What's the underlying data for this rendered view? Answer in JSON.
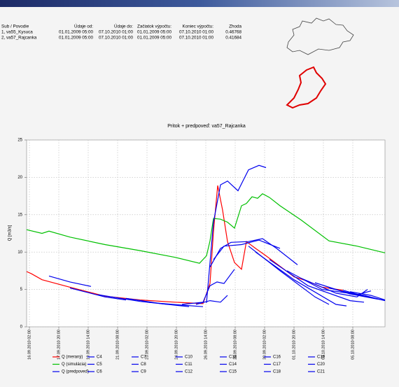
{
  "table": {
    "columns": [
      "Sub / Povodie",
      "Údaje od:",
      "Údaje do:",
      "Začiatok výpočtu:",
      "Koniec výpočtu:",
      "Zhoda"
    ],
    "rows": [
      [
        "1, va55_Kysuca",
        "01.01.2009 05:00",
        "07.10.2010 01:00",
        "01.01.2009 05:00",
        "07.10.2010 01:00",
        "0.46768"
      ],
      [
        "2, va57_Rajcanka",
        "01.01.2009 05:00",
        "07.10.2010 01:00",
        "01.01.2009 05:00",
        "07.10.2010 01:00",
        "0.41684"
      ]
    ]
  },
  "chart_data": {
    "type": "line",
    "title": "Pritok + predpoveď: va57_Rajcanka",
    "y_label": "Q [m3/s]",
    "xlim": [
      "15.09.2010 22:00",
      "07.10.2010 06:00"
    ],
    "xticks": [
      "16.09.2010 02:00",
      "17.09.2010 20:00",
      "19.09.2010 14:00",
      "21.09.2010 08:00",
      "23.09.2010 02:00",
      "24.09.2010 20:00",
      "26.09.2010 14:00",
      "28.09.2010 08:00",
      "30.09.2010 02:00",
      "01.10.2010 20:00",
      "03.10.2010 14:00",
      "05.10.2010 08:00"
    ],
    "ylim": [
      0,
      25
    ],
    "yticks": [
      0,
      5,
      10,
      15,
      20,
      25
    ],
    "grid": true,
    "series": [
      {
        "name": "Q (meraný)",
        "color": "#ff0000",
        "x": [
          "15.09.2010 22:00",
          "16.09.2010 05:00",
          "16.09.2010 20:00",
          "18.09.2010 12:00",
          "20.09.2010 14:00",
          "22.09.2010 16:00",
          "24.09.2010 18:00",
          "26.09.2010 10:00",
          "26.09.2010 20:00",
          "27.09.2010 01:00",
          "27.09.2010 07:00",
          "27.09.2010 14:00",
          "27.09.2010 21:00",
          "28.09.2010 07:00",
          "28.09.2010 17:00",
          "29.09.2010 00:00",
          "29.09.2010 13:00",
          "30.09.2010 04:00",
          "01.10.2010 00:00",
          "01.10.2010 20:00",
          "02.10.2010 16:00",
          "03.10.2010 12:00",
          "04.10.2010 18:00"
        ],
        "values": [
          7.4,
          7.1,
          6.3,
          5.3,
          4.1,
          3.6,
          3.3,
          3.1,
          5.8,
          12.8,
          18.9,
          15.6,
          11.4,
          8.6,
          7.7,
          11.4,
          10.5,
          9.5,
          8.1,
          6.7,
          6.1,
          5.3,
          4.9
        ]
      },
      {
        "name": "Q (simulácia)",
        "color": "#00c000",
        "x": [
          "15.09.2010 22:00",
          "16.09.2010 20:00",
          "17.09.2010 06:00",
          "18.09.2010 12:00",
          "20.09.2010 14:00",
          "22.09.2010 16:00",
          "24.09.2010 18:00",
          "26.09.2010 05:00",
          "26.09.2010 15:00",
          "26.09.2010 20:00",
          "27.09.2010 01:00",
          "27.09.2010 11:00",
          "27.09.2010 21:00",
          "28.09.2010 07:00",
          "28.09.2010 17:00",
          "29.09.2010 00:00",
          "29.09.2010 08:00",
          "29.09.2010 16:00",
          "29.09.2010 23:00",
          "30.09.2010 09:00",
          "01.10.2010 00:00",
          "02.10.2010 06:00",
          "03.10.2010 22:00",
          "05.10.2010 14:00",
          "07.10.2010 06:00"
        ],
        "values": [
          13.0,
          12.5,
          12.8,
          12.0,
          11.0,
          10.2,
          9.3,
          8.5,
          9.5,
          11.5,
          14.5,
          14.4,
          14.0,
          13.2,
          16.2,
          16.5,
          17.4,
          17.2,
          17.8,
          17.3,
          16.2,
          14.3,
          11.5,
          10.8,
          9.9
        ]
      },
      {
        "name": "Q (predpoveď)",
        "color": "#0000ee",
        "x": [
          "26.09.2010 15:00",
          "27.09.2010 01:00",
          "27.09.2010 11:00",
          "27.09.2010 21:00",
          "28.09.2010 12:00",
          "29.09.2010 03:00",
          "29.09.2010 18:00",
          "30.09.2010 04:00"
        ],
        "values": [
          3.2,
          14.0,
          19.0,
          19.5,
          18.2,
          21.0,
          21.6,
          21.3
        ]
      },
      {
        "name": "C4",
        "color": "#0000ee",
        "x": [
          "17.09.2010 06:00",
          "18.09.2010 12:00",
          "19.09.2010 18:00"
        ],
        "values": [
          6.8,
          6.0,
          5.4
        ]
      },
      {
        "name": "C5",
        "color": "#0000ee",
        "x": [
          "18.09.2010 12:00",
          "20.09.2010 14:00",
          "21.09.2010 20:00"
        ],
        "values": [
          5.2,
          4.0,
          3.6
        ]
      },
      {
        "name": "C6",
        "color": "#0000ee",
        "x": [
          "20.09.2010 04:00",
          "22.09.2010 16:00",
          "24.09.2010 08:00"
        ],
        "values": [
          4.3,
          3.4,
          3.0
        ]
      },
      {
        "name": "C7",
        "color": "#0000ee",
        "x": [
          "21.09.2010 20:00",
          "23.09.2010 22:00",
          "25.09.2010 14:00"
        ],
        "values": [
          3.8,
          3.1,
          2.7
        ]
      },
      {
        "name": "C8",
        "color": "#0000ee",
        "x": [
          "23.09.2010 02:00",
          "25.09.2010 04:00",
          "26.09.2010 10:00"
        ],
        "values": [
          3.3,
          2.9,
          2.7
        ]
      },
      {
        "name": "C9",
        "color": "#0000ee",
        "x": [
          "25.09.2010 04:00",
          "26.09.2010 10:00",
          "26.09.2010 20:00",
          "27.09.2010 06:00",
          "27.09.2010 16:00",
          "28.09.2010 07:00"
        ],
        "values": [
          3.0,
          3.3,
          5.5,
          6.0,
          5.8,
          7.7
        ]
      },
      {
        "name": "C10",
        "color": "#0000ee",
        "x": [
          "26.09.2010 00:00",
          "26.09.2010 20:00",
          "27.09.2010 11:00",
          "27.09.2010 21:00"
        ],
        "values": [
          3.0,
          3.5,
          3.3,
          4.2
        ]
      },
      {
        "name": "C11",
        "color": "#0000ee",
        "x": [
          "26.09.2010 20:00",
          "27.09.2010 11:00",
          "28.09.2010 02:00",
          "29.09.2010 03:00",
          "29.09.2010 23:00",
          "30.09.2010 19:00",
          "02.10.2010 01:00"
        ],
        "values": [
          8.0,
          10.5,
          11.3,
          11.4,
          11.8,
          10.5,
          8.3
        ]
      },
      {
        "name": "C12",
        "color": "#0000ee",
        "x": [
          "27.09.2010 01:00",
          "27.09.2010 16:00",
          "28.09.2010 17:00",
          "29.09.2010 18:00",
          "01.10.2010 00:00"
        ],
        "values": [
          9.0,
          10.8,
          11.0,
          11.6,
          10.5
        ]
      },
      {
        "name": "C13",
        "color": "#0000ee",
        "x": [
          "29.09.2010 03:00",
          "01.10.2010 00:00",
          "03.10.2010 02:00",
          "03.10.2010 22:00"
        ],
        "values": [
          10.8,
          7.5,
          4.0,
          3.0
        ]
      },
      {
        "name": "C14",
        "color": "#0000ee",
        "x": [
          "29.09.2010 13:00",
          "01.10.2010 20:00",
          "04.10.2010 08:00",
          "04.10.2010 23:00"
        ],
        "values": [
          10.0,
          6.3,
          3.0,
          2.8
        ]
      },
      {
        "name": "C15",
        "color": "#0000ee",
        "x": [
          "30.09.2010 09:00",
          "02.10.2010 16:00",
          "05.10.2010 04:00",
          "06.10.2010 00:00"
        ],
        "values": [
          9.0,
          5.5,
          3.5,
          3.3
        ]
      },
      {
        "name": "C16",
        "color": "#0000ee",
        "x": [
          "01.10.2010 10:00",
          "03.10.2010 12:00",
          "06.10.2010 00:00",
          "07.10.2010 06:00"
        ],
        "values": [
          7.5,
          5.0,
          4.2,
          3.5
        ]
      },
      {
        "name": "C17",
        "color": "#0000ee",
        "x": [
          "02.10.2010 06:00",
          "04.10.2010 08:00",
          "05.10.2010 14:00",
          "06.10.2010 05:00"
        ],
        "values": [
          6.5,
          4.5,
          4.0,
          5.0
        ]
      },
      {
        "name": "C18",
        "color": "#0000ee",
        "x": [
          "03.10.2010 02:00",
          "05.10.2010 04:00",
          "06.10.2010 20:00"
        ],
        "values": [
          5.9,
          4.4,
          3.7
        ]
      },
      {
        "name": "C19",
        "color": "#0000ee",
        "x": [
          "03.10.2010 22:00",
          "05.10.2010 14:00",
          "06.10.2010 10:00"
        ],
        "values": [
          5.2,
          4.3,
          4.8
        ]
      },
      {
        "name": "C20",
        "color": "#0000ee",
        "x": [
          "04.10.2010 18:00",
          "06.10.2010 00:00",
          "07.10.2010 06:00"
        ],
        "values": [
          4.9,
          4.1,
          3.5
        ]
      },
      {
        "name": "C21",
        "color": "#0000ee",
        "x": [
          "05.10.2010 04:00",
          "06.10.2010 10:00",
          "07.10.2010 06:00"
        ],
        "values": [
          4.7,
          4.2,
          3.6
        ]
      }
    ]
  }
}
